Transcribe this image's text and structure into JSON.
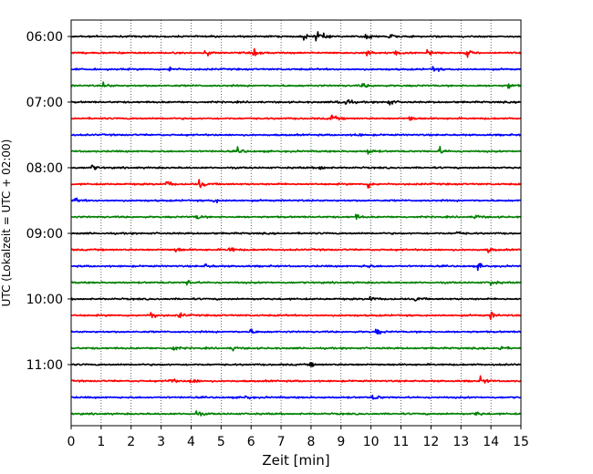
{
  "chart_data": {
    "type": "line",
    "title": "",
    "xlabel": "Zeit  [min]",
    "ylabel": "UTC (Lokalzeit = UTC + 02:00)",
    "xlim": [
      0,
      15
    ],
    "x_ticks": [
      "0",
      "1",
      "2",
      "3",
      "4",
      "5",
      "6",
      "7",
      "8",
      "9",
      "10",
      "11",
      "12",
      "13",
      "14",
      "15"
    ],
    "y_ticks": [
      "06:00",
      "07:00",
      "08:00",
      "09:00",
      "10:00",
      "11:00"
    ],
    "grid": "vertical dotted lines at each minute",
    "trace_interval_minutes": 15,
    "series": [
      {
        "start": "06:00",
        "color": "#000000",
        "events": [
          [
            8.2,
            0.7
          ],
          [
            8.3,
            0.7
          ],
          [
            9.8,
            0.8
          ],
          [
            10.6,
            0.6
          ],
          [
            7.8,
            0.5
          ]
        ]
      },
      {
        "start": "06:15",
        "color": "#ff0000",
        "events": [
          [
            4.5,
            0.6
          ],
          [
            6.1,
            0.5
          ],
          [
            9.9,
            0.6
          ],
          [
            10.8,
            0.6
          ],
          [
            11.9,
            0.7
          ],
          [
            13.2,
            0.6
          ]
        ]
      },
      {
        "start": "06:30",
        "color": "#0000ff",
        "events": [
          [
            3.3,
            0.6
          ],
          [
            12.1,
            0.5
          ]
        ]
      },
      {
        "start": "06:45",
        "color": "#008000",
        "events": [
          [
            1.1,
            0.5
          ],
          [
            9.7,
            0.5
          ],
          [
            14.6,
            0.6
          ]
        ]
      },
      {
        "start": "07:00",
        "color": "#000000",
        "events": [
          [
            8.9,
            0.5
          ],
          [
            9.2,
            0.6
          ],
          [
            10.6,
            0.6
          ]
        ]
      },
      {
        "start": "07:15",
        "color": "#ff0000",
        "events": [
          [
            8.7,
            0.6
          ],
          [
            11.3,
            0.5
          ]
        ]
      },
      {
        "start": "07:30",
        "color": "#0000ff",
        "events": [
          [
            9.5,
            0.3
          ]
        ]
      },
      {
        "start": "07:45",
        "color": "#008000",
        "events": [
          [
            5.6,
            0.5
          ],
          [
            9.9,
            0.6
          ],
          [
            12.3,
            0.6
          ]
        ]
      },
      {
        "start": "08:00",
        "color": "#000000",
        "events": [
          [
            0.7,
            0.5
          ],
          [
            8.3,
            0.5
          ]
        ]
      },
      {
        "start": "08:15",
        "color": "#ff0000",
        "events": [
          [
            3.2,
            0.6
          ],
          [
            4.3,
            0.7
          ],
          [
            9.9,
            0.7
          ]
        ]
      },
      {
        "start": "08:30",
        "color": "#0000ff",
        "events": [
          [
            0.1,
            0.5
          ],
          [
            4.8,
            0.4
          ]
        ]
      },
      {
        "start": "08:45",
        "color": "#008000",
        "events": [
          [
            4.2,
            0.5
          ],
          [
            9.5,
            0.5
          ],
          [
            13.5,
            0.5
          ]
        ]
      },
      {
        "start": "09:00",
        "color": "#000000",
        "events": [
          [
            12.9,
            0.3
          ]
        ]
      },
      {
        "start": "09:15",
        "color": "#ff0000",
        "events": [
          [
            3.5,
            0.5
          ],
          [
            5.3,
            0.6
          ],
          [
            13.9,
            0.5
          ]
        ]
      },
      {
        "start": "09:30",
        "color": "#0000ff",
        "events": [
          [
            4.5,
            0.3
          ],
          [
            9.8,
            0.5
          ],
          [
            13.6,
            0.5
          ]
        ]
      },
      {
        "start": "09:45",
        "color": "#008000",
        "events": [
          [
            3.9,
            0.5
          ],
          [
            14.0,
            0.6
          ]
        ]
      },
      {
        "start": "10:00",
        "color": "#000000",
        "events": [
          [
            10.0,
            0.4
          ],
          [
            11.5,
            0.4
          ]
        ]
      },
      {
        "start": "10:15",
        "color": "#ff0000",
        "events": [
          [
            2.7,
            0.7
          ],
          [
            3.6,
            0.5
          ],
          [
            14.0,
            0.6
          ]
        ]
      },
      {
        "start": "10:30",
        "color": "#0000ff",
        "events": [
          [
            6.0,
            0.4
          ],
          [
            10.2,
            0.5
          ]
        ]
      },
      {
        "start": "10:45",
        "color": "#008000",
        "events": [
          [
            3.4,
            0.5
          ],
          [
            5.4,
            0.4
          ],
          [
            14.3,
            0.5
          ]
        ]
      },
      {
        "start": "11:00",
        "color": "#000000",
        "events": [
          [
            8.0,
            0.3
          ]
        ]
      },
      {
        "start": "11:15",
        "color": "#ff0000",
        "events": [
          [
            3.3,
            0.6
          ],
          [
            4.0,
            0.7
          ],
          [
            13.7,
            0.6
          ]
        ]
      },
      {
        "start": "11:30",
        "color": "#0000ff",
        "events": [
          [
            5.8,
            0.4
          ],
          [
            10.1,
            0.5
          ]
        ]
      },
      {
        "start": "11:45",
        "color": "#008000",
        "events": [
          [
            4.2,
            0.5
          ],
          [
            13.5,
            0.5
          ]
        ]
      }
    ]
  }
}
